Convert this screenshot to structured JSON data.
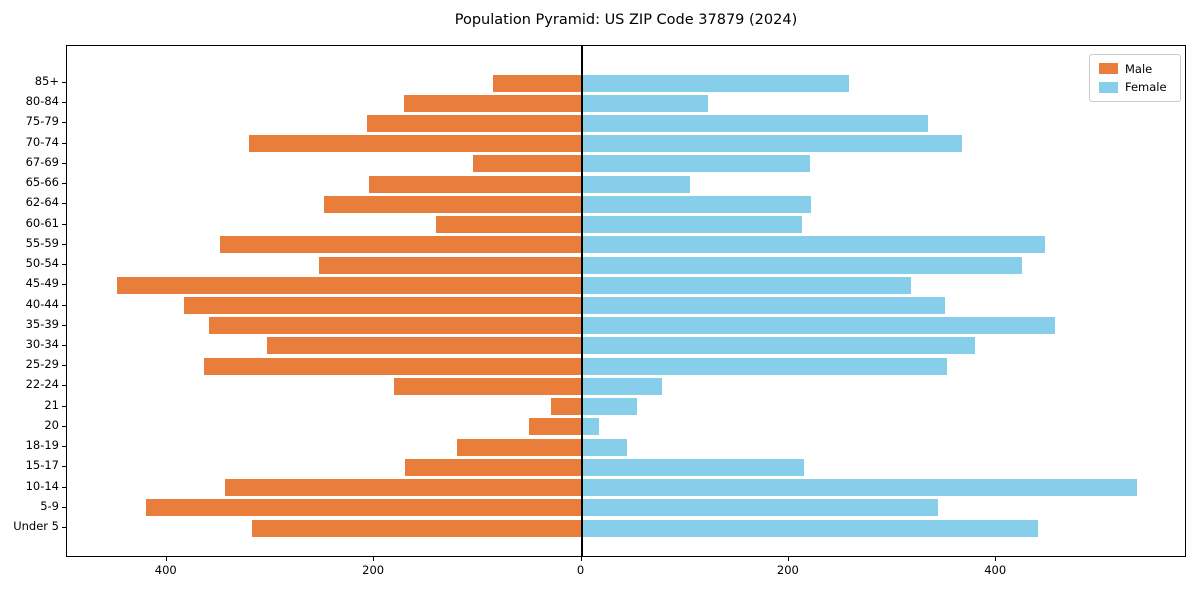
{
  "title": "Population Pyramid: US ZIP Code 37879 (2024)",
  "legend": {
    "male_label": "Male",
    "female_label": "Female"
  },
  "colors": {
    "male": "#E87D3C",
    "female": "#87CEEB",
    "axis": "#000000",
    "legend_border": "#cccccc"
  },
  "chart_data": {
    "type": "bar",
    "subtype": "population-pyramid",
    "title": "Population Pyramid: US ZIP Code 37879 (2024)",
    "grid": false,
    "legend_position": "upper right",
    "categories_top_to_bottom": [
      "85+",
      "80-84",
      "75-79",
      "70-74",
      "67-69",
      "65-66",
      "62-64",
      "60-61",
      "55-59",
      "50-54",
      "45-49",
      "40-44",
      "35-39",
      "30-34",
      "25-29",
      "22-24",
      "21",
      "20",
      "18-19",
      "15-17",
      "10-14",
      "5-9",
      "Under 5"
    ],
    "series": [
      {
        "name": "Male",
        "side": "left",
        "values": [
          85,
          171,
          207,
          321,
          105,
          205,
          248,
          140,
          349,
          253,
          448,
          383,
          359,
          303,
          364,
          181,
          29,
          51,
          120,
          170,
          344,
          420,
          318
        ]
      },
      {
        "name": "Female",
        "side": "right",
        "values": [
          257,
          121,
          333,
          366,
          219,
          104,
          220,
          212,
          446,
          424,
          317,
          350,
          456,
          379,
          352,
          77,
          53,
          16,
          43,
          214,
          535,
          343,
          439
        ]
      }
    ],
    "x_axis": {
      "ticks": [
        {
          "value": -400,
          "label": "400"
        },
        {
          "value": -200,
          "label": "200"
        },
        {
          "value": 0,
          "label": "0"
        },
        {
          "value": 200,
          "label": "200"
        },
        {
          "value": 400,
          "label": "400"
        }
      ],
      "xlim": [
        -497,
        584
      ]
    }
  }
}
